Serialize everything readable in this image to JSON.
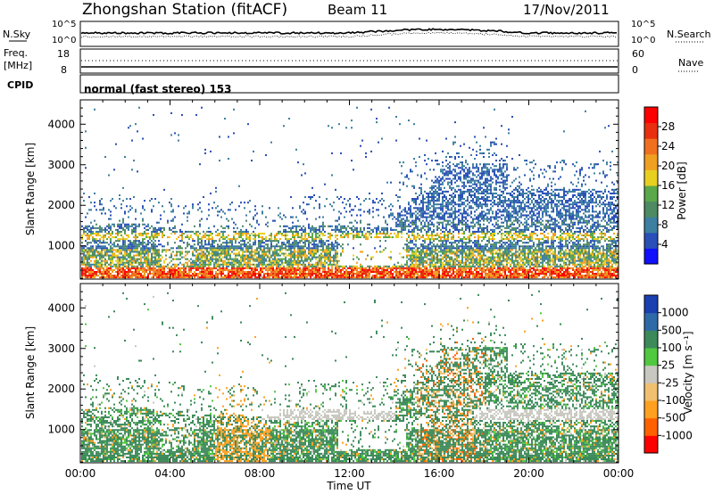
{
  "header": {
    "station": "Zhongshan Station (fitACF)",
    "beam": "Beam 11",
    "date": "17/Nov/2011"
  },
  "top_panels": {
    "nsky_label": "N.Sky",
    "nsky_ticks": [
      "10^5",
      "10^0"
    ],
    "nsearch_label": "N.Search",
    "nsearch_ticks": [
      "10^5",
      "10^0"
    ],
    "freq_label": "Freq.",
    "freq_unit": "[MHz]",
    "freq_ticks": [
      "18",
      "8"
    ],
    "nave_label": "Nave",
    "nave_ticks": [
      "60",
      "0"
    ],
    "cpid_label": "CPID",
    "mode_text": "normal (fast stereo) 153"
  },
  "colors": {
    "power_scale": [
      "#1010ff",
      "#2a4fb8",
      "#3c7fa0",
      "#4e8a62",
      "#5aa84a",
      "#e8d020",
      "#f0a020",
      "#f07020",
      "#e83010",
      "#ff0000"
    ],
    "velocity_scale": [
      "#ff0000",
      "#ff6000",
      "#ffa020",
      "#f0c070",
      "#c8c8c0",
      "#50c840",
      "#3c8a5a",
      "#2f6aa8",
      "#1a3fb0"
    ]
  },
  "chart_data": [
    {
      "type": "heatmap",
      "name": "power",
      "ylabel": "Slant Range [km]",
      "yticks": [
        1000,
        2000,
        3000,
        4000
      ],
      "ylim": [
        180,
        4600
      ],
      "xticks": [
        "00:00",
        "04:00",
        "08:00",
        "12:00",
        "16:00",
        "20:00",
        "00:00"
      ],
      "xlim": [
        0,
        24
      ],
      "colorbar": {
        "label": "Power [dB]",
        "ticks": [
          "28",
          "24",
          "20",
          "16",
          "12",
          "8",
          "4"
        ],
        "range": [
          0,
          30
        ]
      }
    },
    {
      "type": "heatmap",
      "name": "velocity",
      "ylabel": "Slant Range [km]",
      "yticks": [
        1000,
        2000,
        3000,
        4000
      ],
      "ylim": [
        180,
        4600
      ],
      "xticks": [
        "00:00",
        "04:00",
        "08:00",
        "12:00",
        "16:00",
        "20:00",
        "00:00"
      ],
      "xlim": [
        0,
        24
      ],
      "xlabel": "Time UT",
      "colorbar": {
        "label": "Velocity [m s⁻¹]",
        "ticks": [
          "1000",
          "500",
          "100",
          "25",
          "-25",
          "-100",
          "-500",
          "-1000"
        ],
        "range": [
          -1200,
          1200
        ]
      }
    }
  ]
}
